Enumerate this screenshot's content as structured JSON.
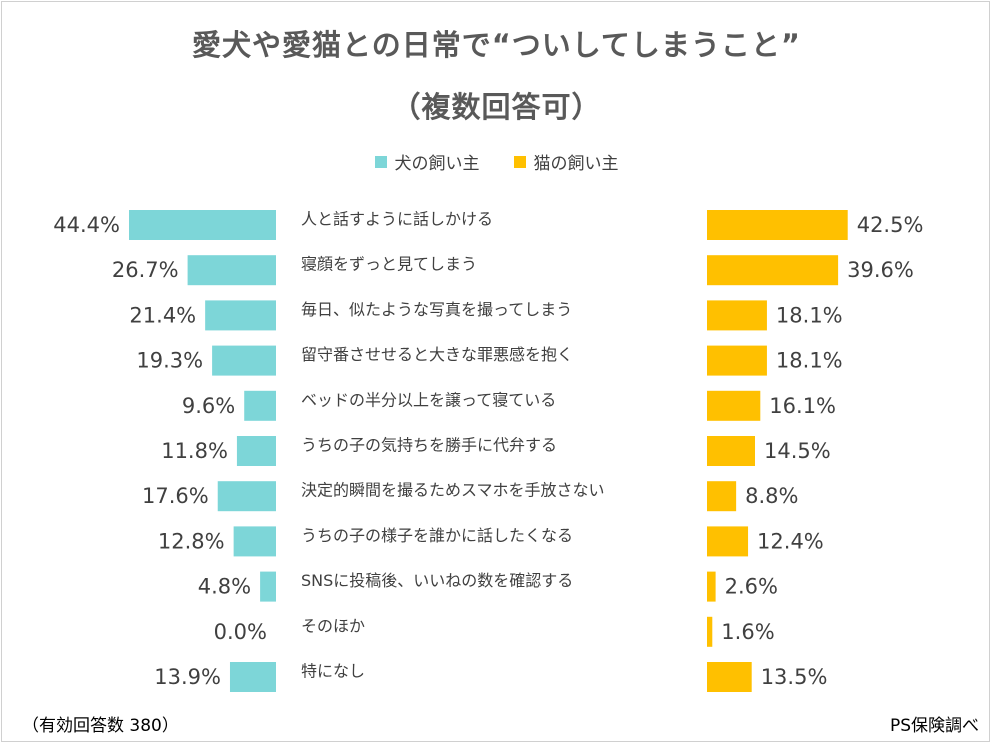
{
  "title_line1": "愛犬や愛猫との日常で“ついしてしまうこと”",
  "title_line2": "（複数回答可）",
  "legend": {
    "dog": "犬の飼い主",
    "cat": "猫の飼い主"
  },
  "footer": {
    "respondents": "（有効回答数 380）",
    "source": "PS保険調べ"
  },
  "colors": {
    "dog": "#7dd6d8",
    "cat": "#ffc000",
    "label": "#404040"
  },
  "chart_data": {
    "type": "bar",
    "orientation": "horizontal-butterfly",
    "title": "愛犬や愛猫との日常で“ついしてしまうこと”（複数回答可）",
    "unit": "%",
    "xlim": [
      0,
      50
    ],
    "categories": [
      "人と話すように話しかける",
      "寝顔をずっと見てしまう",
      "毎日、似たような写真を撮ってしまう",
      "留守番させせると大きな罪悪感を抱く",
      "ベッドの半分以上を譲って寝ている",
      "うちの子の気持ちを勝手に代弁する",
      "決定的瞬間を撮るためスマホを手放さない",
      "うちの子の様子を誰かに話したくなる",
      "SNSに投稿後、いいねの数を確認する",
      "そのほか",
      "特になし"
    ],
    "series": [
      {
        "name": "犬の飼い主",
        "values": [
          44.4,
          26.7,
          21.4,
          19.3,
          9.6,
          11.8,
          17.6,
          12.8,
          4.8,
          0.0,
          13.9
        ],
        "labels": [
          "44.4%",
          "26.7%",
          "21.4%",
          "19.3%",
          "9.6%",
          "11.8%",
          "17.6%",
          "12.8%",
          "4.8%",
          "0.0%",
          "13.9%"
        ]
      },
      {
        "name": "猫の飼い主",
        "values": [
          42.5,
          39.6,
          18.1,
          18.1,
          16.1,
          14.5,
          8.8,
          12.4,
          2.6,
          1.6,
          13.5
        ],
        "labels": [
          "42.5%",
          "39.6%",
          "18.1%",
          "18.1%",
          "16.1%",
          "14.5%",
          "8.8%",
          "12.4%",
          "2.6%",
          "1.6%",
          "13.5%"
        ]
      }
    ]
  }
}
